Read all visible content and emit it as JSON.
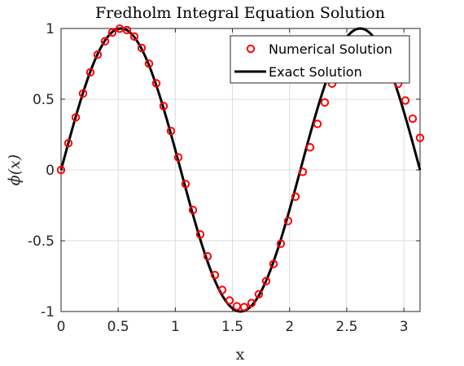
{
  "chart_data": {
    "type": "line",
    "title": "Fredholm Integral Equation Solution",
    "xlabel": "x",
    "ylabel": "ϕ(x)",
    "xlim": [
      0,
      3.14159
    ],
    "ylim": [
      -1,
      1
    ],
    "x_ticks": [
      0,
      0.5,
      1,
      1.5,
      2,
      2.5,
      3
    ],
    "x_tick_labels": [
      "0",
      "0.5",
      "1",
      "1.5",
      "2",
      "2.5",
      "3"
    ],
    "y_ticks": [
      -1,
      -0.5,
      0,
      0.5,
      1
    ],
    "y_tick_labels": [
      "-1",
      "-0.5",
      "0",
      "0.5",
      "1"
    ],
    "grid": true,
    "legend_position": "top-right",
    "series": [
      {
        "name": "Numerical Solution",
        "style": "markers",
        "marker": "circle",
        "color": "#ff0000",
        "x": [
          0,
          0.0641,
          0.1282,
          0.1923,
          0.2565,
          0.3206,
          0.3847,
          0.4488,
          0.5129,
          0.577,
          0.6411,
          0.7052,
          0.7694,
          0.8335,
          0.8976,
          0.9617,
          1.0258,
          1.0899,
          1.154,
          1.2181,
          1.2823,
          1.3464,
          1.4105,
          1.4746,
          1.5387,
          1.6028,
          1.6669,
          1.731,
          1.7952,
          1.8593,
          1.9234,
          1.9875,
          2.0516,
          2.1157,
          2.1798,
          2.2439,
          2.3081,
          2.3722,
          2.4363,
          2.5004,
          2.5645,
          2.6286,
          2.6927,
          2.7568,
          2.821,
          2.8851,
          2.9492,
          3.0133,
          3.0774,
          3.1416
        ],
        "y": [
          0,
          0.1893,
          0.3717,
          0.5406,
          0.69,
          0.8146,
          0.9096,
          0.9718,
          0.9985,
          0.9888,
          0.9427,
          0.8624,
          0.751,
          0.6124,
          0.4518,
          0.2754,
          0.0895,
          -0.0992,
          -0.2829,
          -0.455,
          -0.61,
          -0.7426,
          -0.8477,
          -0.9219,
          -0.9628,
          -0.969,
          -0.9404,
          -0.8781,
          -0.7849,
          -0.6643,
          -0.5209,
          -0.3603,
          -0.1888,
          -0.0131,
          0.1602,
          0.3256,
          0.477,
          0.6099,
          0.7199,
          0.8038,
          0.8594,
          0.8855,
          0.8822,
          0.8504,
          0.7922,
          0.7105,
          0.6088,
          0.4913,
          0.3624,
          0.2271
        ]
      },
      {
        "name": "Exact Solution",
        "style": "line",
        "color": "#000000",
        "function": "sin(3x)",
        "x_range": [
          0,
          3.14159
        ]
      }
    ]
  }
}
